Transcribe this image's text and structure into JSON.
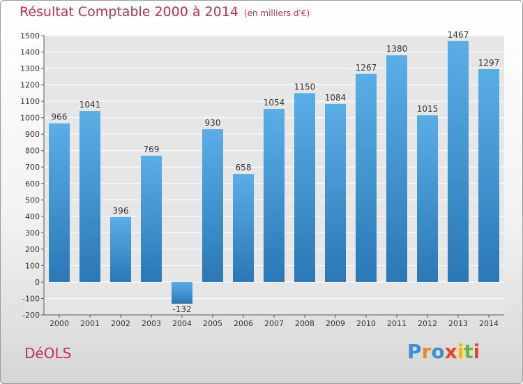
{
  "header": {
    "title": "Résultat Comptable 2000 à 2014",
    "subtitle": "(en milliers d'€)"
  },
  "footer": {
    "commune": "DéOLS"
  },
  "logo": {
    "text": "Proxiti",
    "letters": [
      {
        "ch": "P",
        "color": "#3b8fd8"
      },
      {
        "ch": "r",
        "color": "#f08a1c"
      },
      {
        "ch": "o",
        "color": "#3b8fd8"
      },
      {
        "ch": "x",
        "color": "#e8452c"
      },
      {
        "ch": "i",
        "color": "#f5b700"
      },
      {
        "ch": "t",
        "color": "#6ab534"
      },
      {
        "ch": "i",
        "color": "#e8452c"
      }
    ]
  },
  "chart_data": {
    "type": "bar",
    "title": "Résultat Comptable 2000 à 2014",
    "subtitle": "(en milliers d'€)",
    "categories": [
      "2000",
      "2001",
      "2002",
      "2003",
      "2004",
      "2005",
      "2006",
      "2007",
      "2008",
      "2009",
      "2010",
      "2011",
      "2012",
      "2013",
      "2014"
    ],
    "values": [
      966,
      1041,
      396,
      769,
      -132,
      930,
      658,
      1054,
      1150,
      1084,
      1267,
      1380,
      1015,
      1467,
      1297
    ],
    "data_labels": [
      "966",
      "1041",
      "396",
      "769",
      "-132",
      "930",
      "658",
      "1054",
      "1150",
      "1084",
      "1267",
      "1380",
      "1015",
      "1467",
      "1297"
    ],
    "yticks": [
      -200,
      -100,
      0,
      100,
      200,
      300,
      400,
      500,
      600,
      700,
      800,
      900,
      1000,
      1100,
      1200,
      1300,
      1400,
      1500
    ],
    "ylim": [
      -200,
      1500
    ],
    "grid": true,
    "colors": {
      "bar_top": "#5aaee6",
      "bar_bottom": "#2a78b6",
      "grid": "#ffffff",
      "plot_bg": "#e6e6e6",
      "text": "#333333",
      "title": "#c0305a"
    }
  }
}
